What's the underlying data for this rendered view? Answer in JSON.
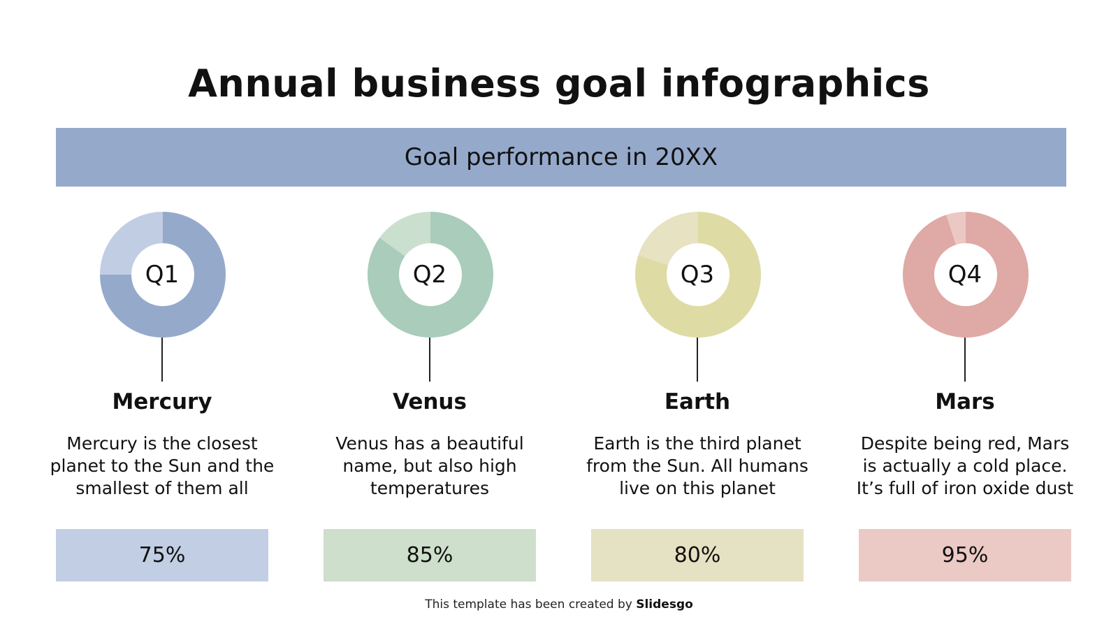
{
  "title": "Annual business goal infographics",
  "banner": {
    "text": "Goal performance in 20XX",
    "color": "#95a9cb"
  },
  "chart_data": {
    "type": "pie",
    "categories": [
      "Q1",
      "Q2",
      "Q3",
      "Q4"
    ],
    "series": [
      {
        "values": [
          75,
          85,
          80,
          95
        ]
      }
    ]
  },
  "items": [
    {
      "quarter": "Q1",
      "planet": "Mercury",
      "description": "Mercury is the closest planet to the Sun and the smallest of them all",
      "percent_label": "75%",
      "value": 75,
      "color_main": "#95a9cb",
      "color_light": "#c1cde2",
      "color_box": "#c2cee3"
    },
    {
      "quarter": "Q2",
      "planet": "Venus",
      "description": "Venus has a beautiful name, but also high temperatures",
      "percent_label": "85%",
      "value": 85,
      "color_main": "#a9ccbb",
      "color_light": "#cbdfcf",
      "color_box": "#cedfcb"
    },
    {
      "quarter": "Q3",
      "planet": "Earth",
      "description": "Earth is the third planet from the Sun. All humans live on this planet",
      "percent_label": "80%",
      "value": 80,
      "color_main": "#dedca4",
      "color_light": "#e6e2c2",
      "color_box": "#e5e1c3"
    },
    {
      "quarter": "Q4",
      "planet": "Mars",
      "description": "Despite being red, Mars is actually a cold place. It’s full of iron oxide dust",
      "percent_label": "95%",
      "value": 95,
      "color_main": "#dfa9a5",
      "color_light": "#ebc8c4",
      "color_box": "#ebc9c5"
    }
  ],
  "footer": {
    "prefix": "This template has been created by ",
    "brand": "Slidesgo"
  }
}
